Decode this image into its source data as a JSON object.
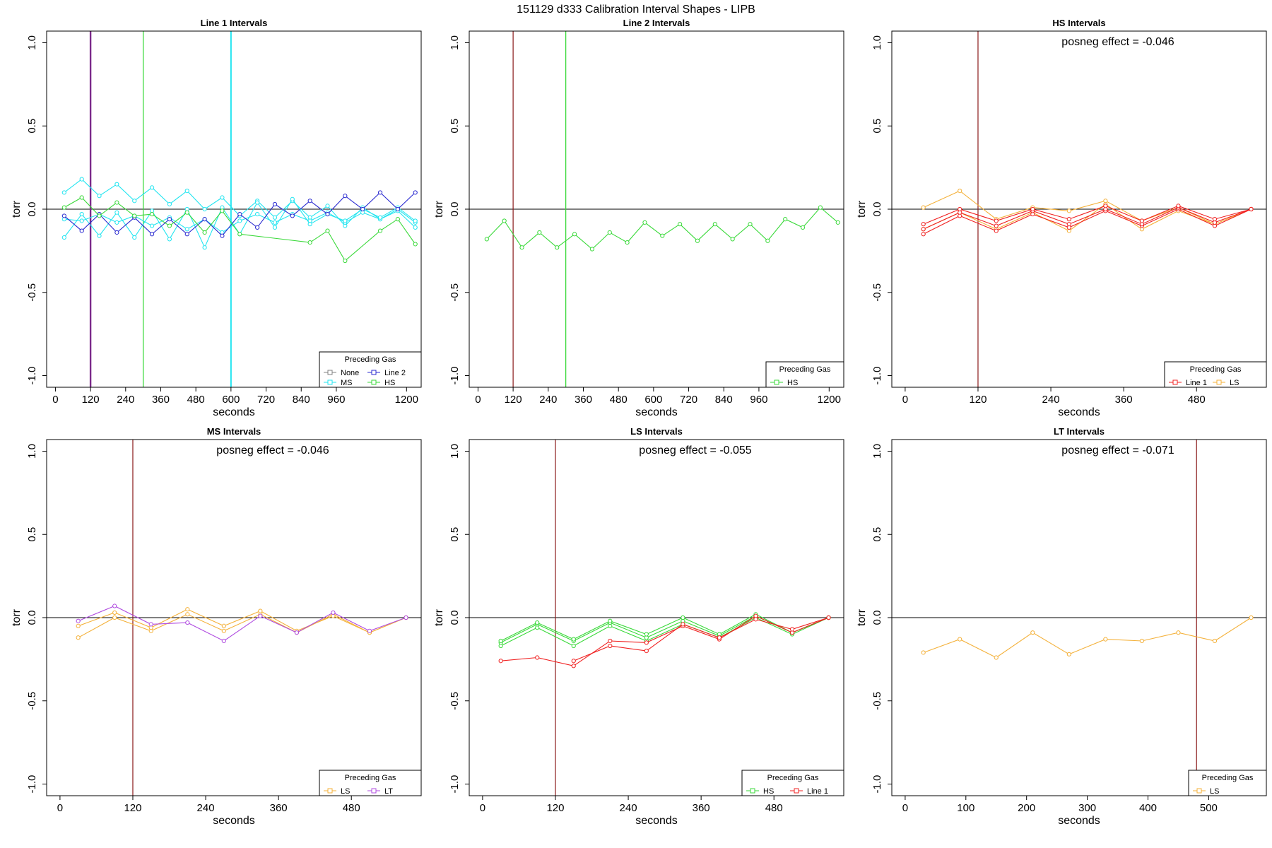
{
  "suptitle": "151129   d333   Calibration Interval Shapes - LIPB",
  "colors": {
    "None": "#808080",
    "MS": "#22e5f0",
    "Line 2": "#2a2ad0",
    "HS": "#3ad93a",
    "Line 1": "#f02020",
    "LS": "#f4b13a",
    "LT": "#b04ce0",
    "vline_dark": "#8b1a1a",
    "vline_purple": "#7b2a8a",
    "axis": "#000000",
    "zero_line": "#000000"
  },
  "chart_data": [
    {
      "type": "line",
      "title": "Line 1 Intervals",
      "xlabel": "seconds",
      "ylabel": "torr",
      "xlim": [
        -30,
        1250
      ],
      "ylim": [
        -1.07,
        1.07
      ],
      "xticks": [
        0,
        120,
        240,
        360,
        480,
        600,
        720,
        840,
        960,
        1200
      ],
      "yticks": [
        -1.0,
        -0.5,
        0.0,
        0.5,
        1.0
      ],
      "hline": 0,
      "vlines": [
        {
          "x": 120,
          "color": "#7b2a8a",
          "width": 2.4
        },
        {
          "x": 300,
          "color": "#3ad93a",
          "width": 1.3
        },
        {
          "x": 600,
          "color": "#22e5f0",
          "width": 2
        }
      ],
      "legend": {
        "title": "Preceding Gas",
        "position": "bottom-right",
        "columns": 2,
        "entries": [
          "None",
          "Line 2",
          "MS",
          "HS"
        ]
      },
      "series": [
        {
          "group": "MS",
          "x": [
            30,
            90,
            150,
            210,
            270,
            330,
            390,
            450,
            510,
            570,
            630,
            690,
            750,
            810,
            870,
            930,
            990,
            1050,
            1110,
            1170,
            1230
          ],
          "y": [
            0.1,
            0.18,
            0.08,
            0.15,
            0.05,
            0.13,
            0.03,
            0.11,
            0.0,
            0.07,
            -0.04,
            0.05,
            -0.05,
            0.05,
            -0.05,
            0.02,
            -0.1,
            0.01,
            -0.06,
            0.0,
            -0.08
          ]
        },
        {
          "group": "MS",
          "x": [
            30,
            90,
            150,
            210,
            270,
            330,
            390,
            450,
            510,
            570,
            630,
            690,
            750,
            810,
            870,
            930,
            990,
            1050,
            1110,
            1170,
            1230
          ],
          "y": [
            -0.06,
            -0.07,
            -0.03,
            -0.08,
            -0.04,
            -0.1,
            -0.05,
            -0.12,
            -0.06,
            -0.14,
            -0.07,
            -0.03,
            -0.08,
            -0.03,
            -0.07,
            -0.02,
            -0.08,
            -0.02,
            -0.06,
            -0.01,
            -0.11
          ]
        },
        {
          "group": "MS",
          "x": [
            30,
            90,
            150,
            210,
            270,
            330,
            390,
            450,
            510,
            570,
            630,
            690,
            750,
            810,
            870,
            930,
            990,
            1050,
            1110,
            1170,
            1230
          ],
          "y": [
            -0.17,
            -0.03,
            -0.16,
            -0.02,
            -0.17,
            -0.01,
            -0.18,
            0.0,
            -0.23,
            0.01,
            -0.15,
            0.04,
            -0.11,
            0.06,
            -0.09,
            -0.03,
            -0.07,
            0.0,
            -0.05,
            0.01,
            -0.07
          ]
        },
        {
          "group": "Line 2",
          "x": [
            30,
            90,
            150,
            210,
            270,
            330,
            390,
            450,
            510,
            570,
            630,
            690,
            750,
            810,
            870,
            930,
            990,
            1050,
            1110,
            1170,
            1230
          ],
          "y": [
            -0.04,
            -0.13,
            -0.03,
            -0.14,
            -0.05,
            -0.15,
            -0.06,
            -0.15,
            -0.06,
            -0.16,
            -0.03,
            -0.11,
            0.03,
            -0.04,
            0.05,
            -0.03,
            0.08,
            0.0,
            0.1,
            0.0,
            0.1
          ]
        },
        {
          "group": "HS",
          "x": [
            30,
            90,
            150,
            210,
            270,
            330,
            390,
            450,
            510,
            570,
            630,
            870,
            930,
            990,
            1110,
            1170,
            1230
          ],
          "y": [
            0.01,
            0.07,
            -0.04,
            0.04,
            -0.04,
            -0.03,
            -0.1,
            -0.02,
            -0.14,
            -0.01,
            -0.15,
            -0.2,
            -0.13,
            -0.31,
            -0.13,
            -0.06,
            -0.21
          ]
        }
      ]
    },
    {
      "type": "line",
      "title": "Line 2 Intervals",
      "xlabel": "seconds",
      "ylabel": "torr",
      "xlim": [
        -30,
        1250
      ],
      "ylim": [
        -1.07,
        1.07
      ],
      "xticks": [
        0,
        120,
        240,
        360,
        480,
        600,
        720,
        840,
        960,
        1200
      ],
      "yticks": [
        -1.0,
        -0.5,
        0.0,
        0.5,
        1.0
      ],
      "hline": 0,
      "vlines": [
        {
          "x": 120,
          "color": "#8b1a1a",
          "width": 1.2
        },
        {
          "x": 300,
          "color": "#3ad93a",
          "width": 1.3
        }
      ],
      "legend": {
        "title": "Preceding Gas",
        "position": "bottom-right",
        "columns": 1,
        "entries": [
          "HS"
        ]
      },
      "series": [
        {
          "group": "HS",
          "x": [
            30,
            90,
            150,
            210,
            270,
            330,
            390,
            450,
            510,
            570,
            630,
            690,
            750,
            810,
            870,
            930,
            990,
            1050,
            1110,
            1170,
            1230
          ],
          "y": [
            -0.18,
            -0.07,
            -0.23,
            -0.14,
            -0.23,
            -0.15,
            -0.24,
            -0.14,
            -0.2,
            -0.08,
            -0.16,
            -0.09,
            -0.19,
            -0.09,
            -0.18,
            -0.09,
            -0.19,
            -0.06,
            -0.11,
            0.01,
            -0.08
          ]
        }
      ]
    },
    {
      "type": "line",
      "title": "HS Intervals",
      "annotation": "posneg effect = -0.046",
      "xlabel": "seconds",
      "ylabel": "torr",
      "xlim": [
        -22,
        595
      ],
      "ylim": [
        -1.07,
        1.07
      ],
      "xticks": [
        0,
        120,
        240,
        360,
        480
      ],
      "yticks": [
        -1.0,
        -0.5,
        0.0,
        0.5,
        1.0
      ],
      "hline": 0,
      "vlines": [
        {
          "x": 120,
          "color": "#8b1a1a",
          "width": 1.2
        }
      ],
      "legend": {
        "title": "Preceding Gas",
        "position": "bottom-right",
        "columns": 2,
        "entries": [
          "Line 1",
          "LS"
        ]
      },
      "series": [
        {
          "group": "LS",
          "x": [
            30,
            90,
            150,
            210,
            270,
            330,
            390,
            450,
            510,
            570
          ],
          "y": [
            0.01,
            0.11,
            -0.06,
            0.01,
            -0.01,
            0.05,
            -0.07,
            0.01,
            -0.09,
            0.0
          ]
        },
        {
          "group": "LS",
          "x": [
            30,
            90,
            150,
            210,
            270,
            330,
            390,
            450,
            510,
            570
          ],
          "y": [
            -0.12,
            -0.02,
            -0.12,
            -0.02,
            -0.13,
            0.03,
            -0.12,
            -0.01,
            -0.09,
            0.0
          ]
        },
        {
          "group": "Line 1",
          "x": [
            30,
            90,
            150,
            210,
            270,
            330,
            390,
            450,
            510,
            570
          ],
          "y": [
            -0.15,
            -0.04,
            -0.13,
            -0.03,
            -0.11,
            -0.01,
            -0.1,
            0.0,
            -0.1,
            0.0
          ]
        },
        {
          "group": "Line 1",
          "x": [
            30,
            90,
            150,
            210,
            270,
            330,
            390,
            450,
            510,
            570
          ],
          "y": [
            -0.12,
            -0.02,
            -0.1,
            -0.01,
            -0.09,
            0.0,
            -0.09,
            0.01,
            -0.08,
            0.0
          ]
        },
        {
          "group": "Line 1",
          "x": [
            30,
            90,
            150,
            210,
            270,
            330,
            390,
            450,
            510,
            570
          ],
          "y": [
            -0.09,
            0.0,
            -0.07,
            0.0,
            -0.06,
            0.02,
            -0.07,
            0.02,
            -0.06,
            0.0
          ]
        }
      ]
    },
    {
      "type": "line",
      "title": "MS Intervals",
      "annotation": "posneg effect = -0.046",
      "xlabel": "seconds",
      "ylabel": "torr",
      "xlim": [
        -22,
        595
      ],
      "ylim": [
        -1.07,
        1.07
      ],
      "xticks": [
        0,
        120,
        240,
        360,
        480
      ],
      "yticks": [
        -1.0,
        -0.5,
        0.0,
        0.5,
        1.0
      ],
      "hline": 0,
      "vlines": [
        {
          "x": 120,
          "color": "#8b1a1a",
          "width": 1.2
        }
      ],
      "legend": {
        "title": "Preceding Gas",
        "position": "bottom-right",
        "columns": 2,
        "entries": [
          "LS",
          "LT"
        ]
      },
      "series": [
        {
          "group": "LS",
          "x": [
            30,
            90,
            150,
            210,
            270,
            330,
            390,
            450,
            510,
            570
          ],
          "y": [
            -0.12,
            0.0,
            -0.08,
            0.02,
            -0.08,
            0.02,
            -0.09,
            0.02,
            -0.09,
            0.0
          ]
        },
        {
          "group": "LS",
          "x": [
            30,
            90,
            150,
            210,
            270,
            330,
            390,
            450,
            510,
            570
          ],
          "y": [
            -0.05,
            0.03,
            -0.06,
            0.05,
            -0.05,
            0.04,
            -0.08,
            0.01,
            -0.09,
            0.0
          ]
        },
        {
          "group": "LT",
          "x": [
            30,
            90,
            150,
            210,
            270,
            330,
            390,
            450,
            510,
            570
          ],
          "y": [
            -0.02,
            0.07,
            -0.04,
            -0.03,
            -0.14,
            0.01,
            -0.09,
            0.03,
            -0.08,
            0.0
          ]
        }
      ]
    },
    {
      "type": "line",
      "title": "LS Intervals",
      "annotation": "posneg effect = -0.055",
      "xlabel": "seconds",
      "ylabel": "torr",
      "xlim": [
        -22,
        595
      ],
      "ylim": [
        -1.07,
        1.07
      ],
      "xticks": [
        0,
        120,
        240,
        360,
        480
      ],
      "yticks": [
        -1.0,
        -0.5,
        0.0,
        0.5,
        1.0
      ],
      "hline": 0,
      "vlines": [
        {
          "x": 120,
          "color": "#8b1a1a",
          "width": 1.2
        }
      ],
      "legend": {
        "title": "Preceding Gas",
        "position": "bottom-right",
        "columns": 2,
        "entries": [
          "HS",
          "Line 1"
        ]
      },
      "series": [
        {
          "group": "HS",
          "x": [
            30,
            90,
            150,
            210,
            270,
            330,
            390,
            450,
            510,
            570
          ],
          "y": [
            -0.17,
            -0.06,
            -0.17,
            -0.05,
            -0.14,
            -0.04,
            -0.12,
            0.0,
            -0.1,
            0.0
          ]
        },
        {
          "group": "HS",
          "x": [
            30,
            90,
            150,
            210,
            270,
            330,
            390,
            450,
            510,
            570
          ],
          "y": [
            -0.15,
            -0.04,
            -0.14,
            -0.03,
            -0.12,
            -0.02,
            -0.11,
            0.01,
            -0.09,
            0.0
          ]
        },
        {
          "group": "HS",
          "x": [
            30,
            90,
            150,
            210,
            270,
            330,
            390,
            450,
            510,
            570
          ],
          "y": [
            -0.14,
            -0.03,
            -0.13,
            -0.02,
            -0.1,
            0.0,
            -0.1,
            0.02,
            -0.09,
            0.0
          ]
        },
        {
          "group": "Line 1",
          "x": [
            30,
            90,
            150,
            210,
            270,
            330,
            390,
            450,
            510,
            570
          ],
          "y": [
            -0.26,
            -0.24,
            -0.29,
            -0.14,
            -0.15,
            -0.05,
            -0.13,
            0.01,
            -0.09,
            0.0
          ]
        },
        {
          "group": "Line 1",
          "x": [
            150,
            210,
            270,
            330,
            390,
            450,
            510,
            570
          ],
          "y": [
            -0.26,
            -0.17,
            -0.2,
            -0.04,
            -0.12,
            -0.01,
            -0.07,
            0.0
          ]
        }
      ]
    },
    {
      "type": "line",
      "title": "LT Intervals",
      "annotation": "posneg effect = -0.071",
      "xlabel": "seconds",
      "ylabel": "torr",
      "xlim": [
        -22,
        595
      ],
      "ylim": [
        -1.07,
        1.07
      ],
      "xticks": [
        0,
        100,
        200,
        300,
        400,
        500
      ],
      "yticks": [
        -1.0,
        -0.5,
        0.0,
        0.5,
        1.0
      ],
      "hline": 0,
      "vlines": [
        {
          "x": 480,
          "color": "#8b1a1a",
          "width": 1.2
        }
      ],
      "legend": {
        "title": "Preceding Gas",
        "position": "bottom-right",
        "columns": 1,
        "entries": [
          "LS"
        ]
      },
      "series": [
        {
          "group": "LS",
          "x": [
            30,
            90,
            150,
            210,
            270,
            330,
            390,
            450,
            510,
            570
          ],
          "y": [
            -0.21,
            -0.13,
            -0.24,
            -0.09,
            -0.22,
            -0.13,
            -0.14,
            -0.09,
            -0.14,
            0.0
          ]
        }
      ]
    }
  ]
}
